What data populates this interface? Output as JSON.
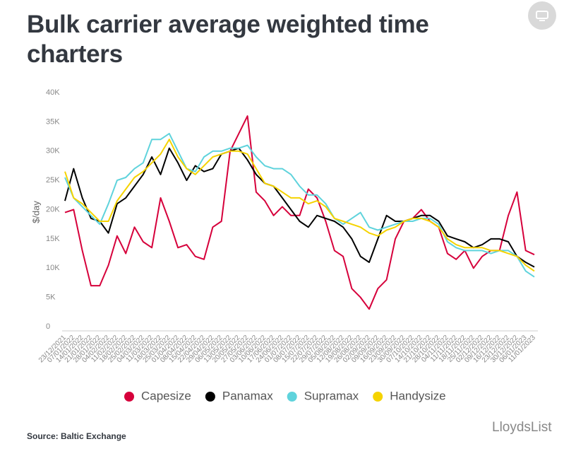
{
  "chart_data": {
    "type": "line",
    "title": "Bulk carrier average weighted time charters",
    "y_label": "$/day",
    "source": "Source: Baltic Exchange",
    "watermark": "LloydsList",
    "categories": [
      "23/12/2021",
      "07/01/2022",
      "14/01/2022",
      "21/01/2022",
      "28/01/2022",
      "04/02/2022",
      "11/02/2022",
      "18/02/2022",
      "25/02/2022",
      "04/03/2022",
      "11/03/2022",
      "18/03/2022",
      "25/03/2022",
      "01/04/2022",
      "08/04/2022",
      "15/04/2022",
      "22/04/2022",
      "29/04/2022",
      "06/05/2022",
      "13/05/2022",
      "20/05/2022",
      "27/05/2022",
      "03/06/2022",
      "10/06/2022",
      "17/06/2022",
      "24/06/2022",
      "01/07/2022",
      "08/07/2022",
      "15/07/2022",
      "22/07/2022",
      "29/07/2022",
      "05/08/2022",
      "12/08/2022",
      "19/08/2022",
      "26/08/2022",
      "02/09/2022",
      "09/09/2022",
      "16/09/2022",
      "23/09/2022",
      "30/09/2022",
      "07/10/2022",
      "14/10/2022",
      "21/10/2022",
      "28/10/2022",
      "04/11/2022",
      "11/11/2022",
      "18/11/2022",
      "25/11/2022",
      "02/12/2022",
      "09/12/2022",
      "16/12/2022",
      "23/12/2022",
      "30/12/2022",
      "06/01/2023",
      "11/01/2023"
    ],
    "series": [
      {
        "name": "Capesize",
        "color": "#d6003b",
        "values": [
          19500,
          20000,
          13000,
          7000,
          7000,
          10500,
          15500,
          12500,
          17000,
          14500,
          13500,
          22000,
          18000,
          13500,
          14000,
          12000,
          11500,
          17000,
          18000,
          30000,
          33000,
          36000,
          23000,
          21500,
          19000,
          20500,
          19000,
          19000,
          23500,
          22000,
          18000,
          13000,
          12000,
          6500,
          5000,
          3000,
          6500,
          8000,
          15000,
          18000,
          18500,
          20000,
          18000,
          17000,
          12500,
          11500,
          13000,
          10000,
          12000,
          13000,
          13000,
          19000,
          23000,
          13000,
          12300
        ]
      },
      {
        "name": "Panamax",
        "color": "#000000",
        "values": [
          21500,
          27000,
          22000,
          18500,
          18000,
          16000,
          21000,
          22000,
          24000,
          26000,
          29000,
          26000,
          30500,
          28000,
          25000,
          27500,
          26500,
          27000,
          29500,
          30000,
          30500,
          28500,
          26000,
          24500,
          24000,
          22000,
          20000,
          18000,
          17000,
          19000,
          18500,
          18000,
          17000,
          15000,
          12000,
          11000,
          15000,
          19000,
          18000,
          18000,
          18500,
          19000,
          19000,
          18000,
          15500,
          15000,
          14500,
          13500,
          14000,
          15000,
          15000,
          14500,
          12000,
          11000,
          10200
        ]
      },
      {
        "name": "Supramax",
        "color": "#5fd3dc",
        "values": [
          25500,
          22000,
          20500,
          19000,
          17500,
          21000,
          25000,
          25500,
          27000,
          28000,
          32000,
          32000,
          33000,
          30000,
          27000,
          26500,
          29000,
          30000,
          30000,
          30500,
          30500,
          31000,
          29000,
          27500,
          27000,
          27000,
          26000,
          24000,
          22500,
          22500,
          21000,
          18500,
          17500,
          18500,
          19500,
          17000,
          16500,
          17000,
          17500,
          18000,
          18000,
          18500,
          18500,
          17500,
          14500,
          13500,
          13000,
          13000,
          13000,
          12500,
          13000,
          13000,
          12000,
          9500,
          8500
        ]
      },
      {
        "name": "Handysize",
        "color": "#f5d300",
        "values": [
          26500,
          22000,
          21000,
          19500,
          18000,
          18000,
          21500,
          23500,
          25500,
          26500,
          28000,
          29500,
          32000,
          29000,
          27000,
          26000,
          27500,
          29000,
          29500,
          30000,
          30000,
          29500,
          27000,
          24500,
          24000,
          23000,
          22000,
          22000,
          21000,
          21500,
          20500,
          18500,
          18000,
          17500,
          17000,
          16000,
          15500,
          16500,
          17000,
          18000,
          18500,
          18500,
          18000,
          17000,
          15000,
          14000,
          13500,
          13500,
          13500,
          13000,
          13000,
          12500,
          12000,
          10500,
          9500
        ]
      }
    ],
    "ylim": [
      0,
      40000
    ],
    "yticks": [
      0,
      {
        "value": 5000,
        "label": "5K"
      },
      {
        "value": 10000,
        "label": "10K"
      },
      {
        "value": 15000,
        "label": "15K"
      },
      {
        "value": 20000,
        "label": "20K"
      },
      {
        "value": 25000,
        "label": "25K"
      },
      {
        "value": 30000,
        "label": "30K"
      },
      {
        "value": 35000,
        "label": "35K"
      },
      {
        "value": 40000,
        "label": "40K"
      }
    ],
    "grid": false,
    "legend": "bottom"
  }
}
